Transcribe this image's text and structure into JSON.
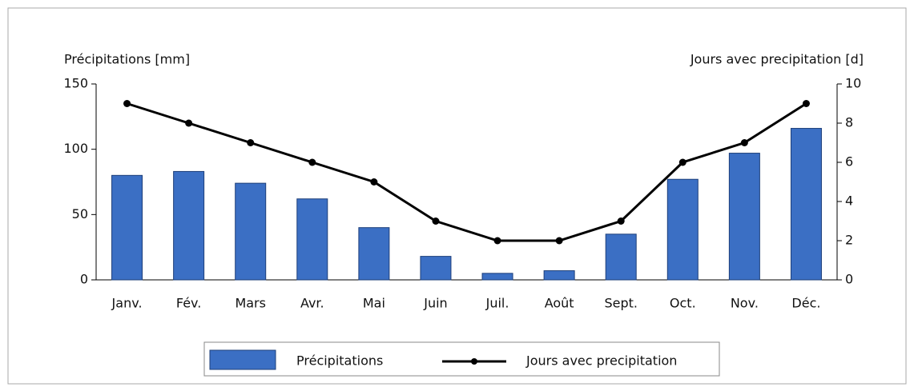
{
  "chart_data": {
    "type": "bar",
    "y_label": "Précipitations [mm]",
    "y2_label": "Jours avec precipitation [d]",
    "categories": [
      "Janv.",
      "Fév.",
      "Mars",
      "Avr.",
      "Mai",
      "Juin",
      "Juil.",
      "Août",
      "Sept.",
      "Oct.",
      "Nov.",
      "Déc."
    ],
    "series": [
      {
        "name": "Précipitations",
        "type": "bar",
        "color": "#3b6fc4",
        "values": [
          80,
          83,
          74,
          62,
          40,
          18,
          5,
          7,
          35,
          77,
          97,
          116
        ]
      },
      {
        "name": "Jours avec precipitation",
        "type": "line",
        "axis": "y2",
        "color": "#000000",
        "values": [
          9,
          8,
          7,
          6,
          5,
          3,
          2,
          2,
          3,
          6,
          7,
          9
        ]
      }
    ],
    "ylim": [
      0,
      150
    ],
    "yticks": [
      0,
      50,
      100,
      150
    ],
    "y2lim": [
      0,
      10
    ],
    "y2ticks": [
      0,
      2,
      4,
      6,
      8,
      10
    ],
    "legend": "bottom"
  }
}
